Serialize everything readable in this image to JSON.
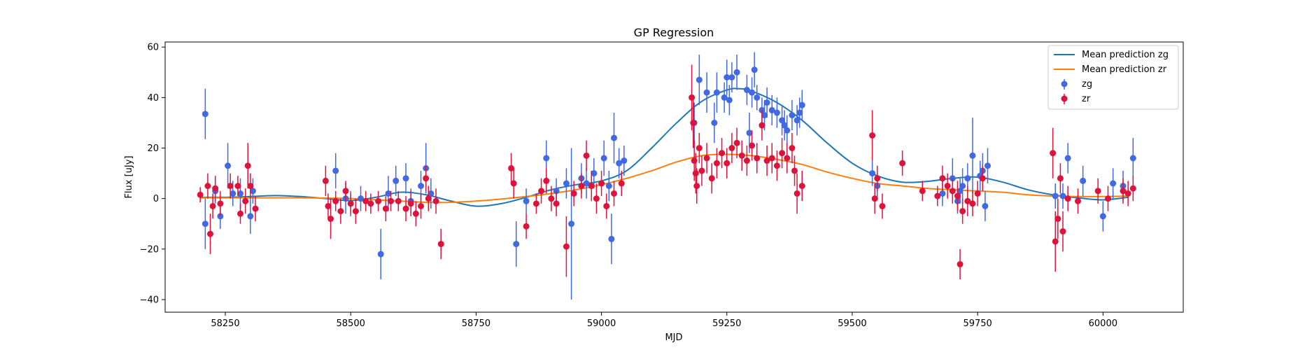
{
  "chart_data": {
    "type": "scatter",
    "title": "GP Regression",
    "xlabel": "MJD",
    "ylabel": "Flux [uJy]",
    "xlim": [
      58130,
      60160
    ],
    "ylim": [
      -45,
      62
    ],
    "xticks": [
      58250,
      58500,
      58750,
      59000,
      59250,
      59500,
      59750,
      60000
    ],
    "yticks": [
      -40,
      -20,
      0,
      20,
      40,
      60
    ],
    "legend_position": "top-right",
    "legend": [
      "Mean prediction zg",
      "Mean prediction zr",
      "zg",
      "zr"
    ],
    "colors": {
      "mean_zg": "#1f77b4",
      "mean_zr": "#ff7f0e",
      "zg": "#4169e1",
      "zr": "#dc143c"
    },
    "lines": [
      {
        "name": "Mean prediction zg",
        "color": "#1f77b4",
        "x": [
          58200,
          58250,
          58300,
          58350,
          58400,
          58450,
          58500,
          58550,
          58600,
          58650,
          58700,
          58750,
          58800,
          58850,
          58900,
          58950,
          59000,
          59050,
          59100,
          59150,
          59200,
          59250,
          59275,
          59300,
          59350,
          59400,
          59450,
          59500,
          59550,
          59600,
          59650,
          59700,
          59750,
          59800,
          59850,
          59900,
          59950,
          60000,
          60050
        ],
        "y": [
          0.5,
          0.5,
          0.8,
          1.2,
          0.8,
          0,
          -0.8,
          0.5,
          2.5,
          1.5,
          -1.0,
          -3.0,
          -2.0,
          0.5,
          3.5,
          5.5,
          7.0,
          11.0,
          20.0,
          30.0,
          38.5,
          43.0,
          43.5,
          42.5,
          38.0,
          31.0,
          22.0,
          14.0,
          9.0,
          6.5,
          6.8,
          8.0,
          8.5,
          6.5,
          3.5,
          1.5,
          0.3,
          -0.5,
          0.5
        ]
      },
      {
        "name": "Mean prediction zr",
        "color": "#ff7f0e",
        "x": [
          58200,
          58250,
          58300,
          58350,
          58400,
          58450,
          58500,
          58550,
          58600,
          58650,
          58700,
          58750,
          58800,
          58850,
          58900,
          58950,
          59000,
          59050,
          59100,
          59150,
          59200,
          59250,
          59300,
          59350,
          59400,
          59450,
          59500,
          59550,
          59600,
          59650,
          59700,
          59750,
          59800,
          59850,
          59900,
          59950,
          60000,
          60050
        ],
        "y": [
          0.3,
          0.3,
          0.3,
          0.3,
          0.3,
          0.2,
          0.0,
          -0.5,
          -1.0,
          -1.5,
          -1.5,
          -1.0,
          -0.2,
          0.8,
          2.0,
          3.5,
          5.5,
          8.0,
          11.0,
          14.5,
          17.0,
          17.5,
          17.0,
          15.5,
          13.5,
          10.5,
          8.0,
          6.0,
          5.0,
          4.0,
          3.5,
          3.0,
          2.5,
          1.5,
          1.0,
          0.8,
          0.8,
          1.0
        ]
      }
    ],
    "series": [
      {
        "name": "zg",
        "color": "#4169e1",
        "points": [
          [
            58210,
            33.5,
            10
          ],
          [
            58210,
            -10,
            10
          ],
          [
            58230,
            3,
            5
          ],
          [
            58240,
            -7,
            5
          ],
          [
            58255,
            13,
            9
          ],
          [
            58265,
            2,
            5
          ],
          [
            58280,
            2,
            6
          ],
          [
            58300,
            -7,
            7
          ],
          [
            58305,
            3,
            5
          ],
          [
            58470,
            11,
            7
          ],
          [
            58490,
            0,
            6
          ],
          [
            58500,
            -2,
            5
          ],
          [
            58520,
            0,
            5
          ],
          [
            58560,
            -22,
            10
          ],
          [
            58575,
            2,
            7
          ],
          [
            58590,
            7,
            6
          ],
          [
            58610,
            8,
            6
          ],
          [
            58620,
            -1,
            5
          ],
          [
            58640,
            5,
            6
          ],
          [
            58650,
            12,
            10
          ],
          [
            58660,
            2,
            6
          ],
          [
            58830,
            -18,
            9
          ],
          [
            58850,
            -1,
            5
          ],
          [
            58890,
            16,
            7
          ],
          [
            58910,
            3,
            5
          ],
          [
            58930,
            6,
            6
          ],
          [
            58940,
            -10,
            30
          ],
          [
            58960,
            8,
            6
          ],
          [
            58970,
            6,
            6
          ],
          [
            58985,
            10,
            6
          ],
          [
            59005,
            16,
            7
          ],
          [
            59015,
            5,
            6
          ],
          [
            59020,
            -16,
            10
          ],
          [
            59025,
            24,
            10
          ],
          [
            59035,
            14,
            6
          ],
          [
            59045,
            15,
            6
          ],
          [
            59185,
            30,
            8
          ],
          [
            59195,
            47,
            10
          ],
          [
            59210,
            42,
            8
          ],
          [
            59225,
            30,
            8
          ],
          [
            59230,
            42,
            8
          ],
          [
            59245,
            40,
            6
          ],
          [
            59250,
            48,
            7
          ],
          [
            59255,
            39,
            6
          ],
          [
            59260,
            48,
            6
          ],
          [
            59270,
            50,
            7
          ],
          [
            59290,
            43,
            6
          ],
          [
            59295,
            26,
            8
          ],
          [
            59300,
            42,
            6
          ],
          [
            59305,
            51,
            7
          ],
          [
            59310,
            40,
            5
          ],
          [
            59320,
            35,
            5
          ],
          [
            59325,
            33,
            6
          ],
          [
            59330,
            38,
            6
          ],
          [
            59340,
            35,
            6
          ],
          [
            59350,
            34,
            6
          ],
          [
            59360,
            31,
            6
          ],
          [
            59365,
            29,
            6
          ],
          [
            59370,
            27,
            6
          ],
          [
            59380,
            33,
            6
          ],
          [
            59390,
            31,
            6
          ],
          [
            59395,
            34,
            6
          ],
          [
            59400,
            37,
            6
          ],
          [
            59540,
            10,
            5
          ],
          [
            59550,
            5,
            5
          ],
          [
            59680,
            2,
            5
          ],
          [
            59700,
            8,
            8
          ],
          [
            59710,
            -1,
            5
          ],
          [
            59715,
            3,
            5
          ],
          [
            59720,
            5,
            7
          ],
          [
            59730,
            8,
            6
          ],
          [
            59740,
            17,
            15
          ],
          [
            59755,
            9,
            6
          ],
          [
            59760,
            11,
            7
          ],
          [
            59765,
            -3,
            6
          ],
          [
            59770,
            13,
            7
          ],
          [
            59905,
            1,
            5
          ],
          [
            59920,
            1,
            5
          ],
          [
            59930,
            16,
            6
          ],
          [
            59960,
            7,
            6
          ],
          [
            60000,
            -7,
            6
          ],
          [
            60020,
            6,
            6
          ],
          [
            60040,
            5,
            6
          ],
          [
            60060,
            16,
            8
          ]
        ]
      },
      {
        "name": "zr",
        "color": "#dc143c",
        "points": [
          [
            58200,
            1.5,
            3
          ],
          [
            58215,
            5,
            5
          ],
          [
            58220,
            -14,
            8
          ],
          [
            58225,
            -3,
            5
          ],
          [
            58230,
            4,
            5
          ],
          [
            58240,
            -2,
            5
          ],
          [
            58260,
            5,
            5
          ],
          [
            58275,
            5,
            4
          ],
          [
            58280,
            -6,
            4
          ],
          [
            58290,
            -1,
            5
          ],
          [
            58295,
            13,
            9
          ],
          [
            58300,
            5,
            5
          ],
          [
            58310,
            -4,
            5
          ],
          [
            58450,
            7,
            6
          ],
          [
            58455,
            -3,
            5
          ],
          [
            58460,
            -8,
            8
          ],
          [
            58470,
            -1,
            4
          ],
          [
            58480,
            -5,
            5
          ],
          [
            58490,
            3,
            4
          ],
          [
            58500,
            -2,
            4
          ],
          [
            58510,
            -5,
            5
          ],
          [
            58530,
            -1,
            4
          ],
          [
            58540,
            -2,
            4
          ],
          [
            58555,
            -1,
            4
          ],
          [
            58570,
            -4,
            5
          ],
          [
            58580,
            -1,
            4
          ],
          [
            58595,
            -1,
            4
          ],
          [
            58610,
            -4,
            5
          ],
          [
            58620,
            -2,
            5
          ],
          [
            58630,
            -6,
            5
          ],
          [
            58640,
            -3,
            5
          ],
          [
            58650,
            8,
            5
          ],
          [
            58655,
            0,
            5
          ],
          [
            58670,
            -1,
            5
          ],
          [
            58680,
            -18,
            6
          ],
          [
            58820,
            12,
            6
          ],
          [
            58825,
            6,
            6
          ],
          [
            58850,
            -11,
            5
          ],
          [
            58870,
            -2,
            4
          ],
          [
            58880,
            3,
            5
          ],
          [
            58890,
            7,
            5
          ],
          [
            58900,
            0,
            5
          ],
          [
            58910,
            -2,
            5
          ],
          [
            58930,
            -19,
            12
          ],
          [
            58945,
            2,
            5
          ],
          [
            58960,
            5,
            5
          ],
          [
            58970,
            17,
            6
          ],
          [
            58980,
            5,
            6
          ],
          [
            58990,
            0,
            6
          ],
          [
            59000,
            6,
            5
          ],
          [
            59010,
            -3,
            5
          ],
          [
            59025,
            2,
            5
          ],
          [
            59040,
            6,
            5
          ],
          [
            59180,
            40,
            13
          ],
          [
            59183,
            30,
            10
          ],
          [
            59185,
            15,
            8
          ],
          [
            59188,
            10,
            8
          ],
          [
            59190,
            5,
            7
          ],
          [
            59195,
            20,
            6
          ],
          [
            59200,
            11,
            6
          ],
          [
            59210,
            16,
            6
          ],
          [
            59220,
            8,
            6
          ],
          [
            59230,
            14,
            6
          ],
          [
            59240,
            18,
            6
          ],
          [
            59250,
            14,
            6
          ],
          [
            59260,
            20,
            6
          ],
          [
            59270,
            22,
            6
          ],
          [
            59280,
            17,
            6
          ],
          [
            59290,
            15,
            6
          ],
          [
            59300,
            21,
            6
          ],
          [
            59310,
            16,
            6
          ],
          [
            59320,
            29,
            6
          ],
          [
            59330,
            15,
            6
          ],
          [
            59340,
            16,
            6
          ],
          [
            59350,
            13,
            6
          ],
          [
            59360,
            18,
            6
          ],
          [
            59370,
            16,
            6
          ],
          [
            59380,
            20,
            6
          ],
          [
            59385,
            11,
            6
          ],
          [
            59390,
            2,
            8
          ],
          [
            59400,
            5,
            6
          ],
          [
            59540,
            25,
            10
          ],
          [
            59545,
            0,
            6
          ],
          [
            59550,
            8,
            5
          ],
          [
            59560,
            -3,
            5
          ],
          [
            59600,
            14,
            5
          ],
          [
            59640,
            3,
            4
          ],
          [
            59670,
            1,
            4
          ],
          [
            59680,
            8,
            5
          ],
          [
            59690,
            5,
            5
          ],
          [
            59700,
            3,
            5
          ],
          [
            59710,
            1,
            6
          ],
          [
            59715,
            -26,
            6
          ],
          [
            59720,
            -5,
            5
          ],
          [
            59730,
            -1,
            6
          ],
          [
            59740,
            -2,
            5
          ],
          [
            59750,
            2,
            5
          ],
          [
            59760,
            8,
            5
          ],
          [
            59900,
            18,
            10
          ],
          [
            59905,
            -17,
            12
          ],
          [
            59910,
            -8,
            8
          ],
          [
            59915,
            8,
            6
          ],
          [
            59920,
            -13,
            8
          ],
          [
            59930,
            0,
            5
          ],
          [
            59950,
            -1,
            5
          ],
          [
            59990,
            3,
            5
          ],
          [
            60010,
            0,
            5
          ],
          [
            60040,
            3,
            5
          ],
          [
            60050,
            2,
            5
          ],
          [
            60060,
            4,
            5
          ]
        ]
      }
    ]
  }
}
